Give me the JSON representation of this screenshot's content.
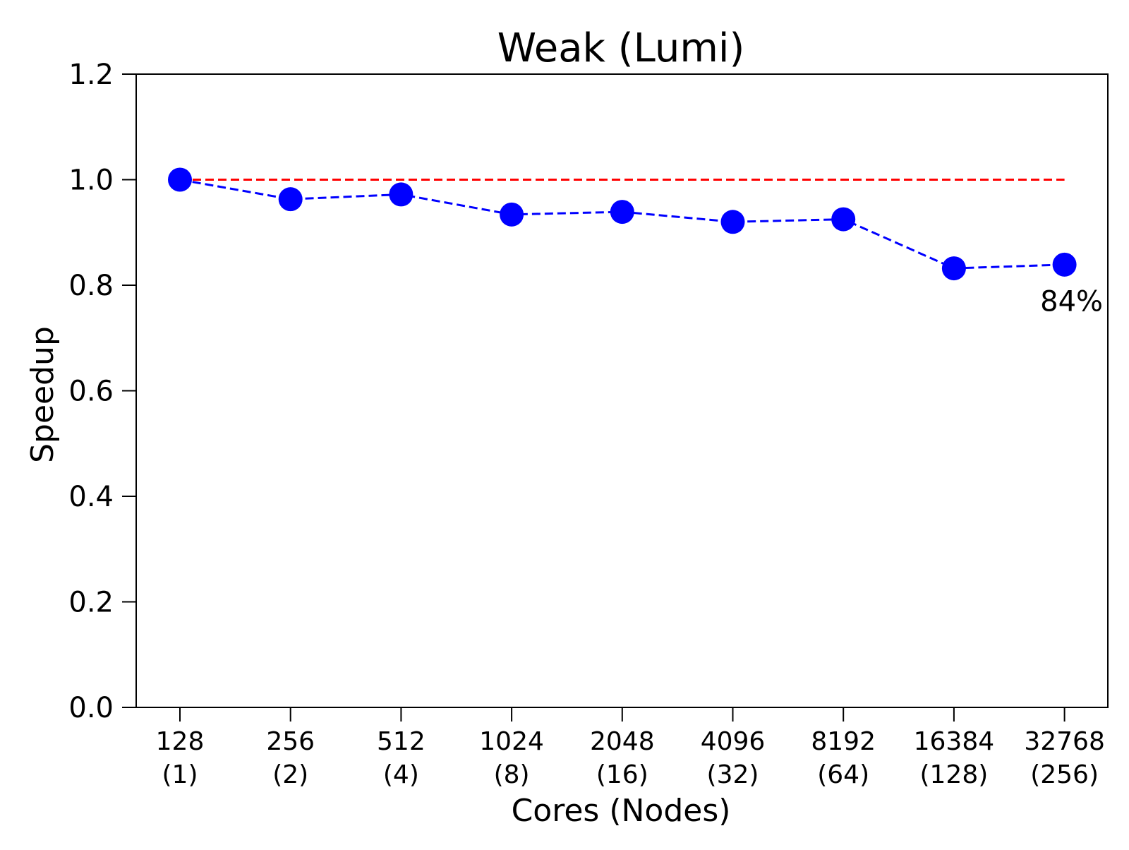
{
  "chart_data": {
    "type": "line",
    "title": "Weak (Lumi)",
    "xlabel": "Cores (Nodes)",
    "ylabel": "Speedup",
    "categories": [
      {
        "cores": "128",
        "nodes": "(1)"
      },
      {
        "cores": "256",
        "nodes": "(2)"
      },
      {
        "cores": "512",
        "nodes": "(4)"
      },
      {
        "cores": "1024",
        "nodes": "(8)"
      },
      {
        "cores": "2048",
        "nodes": "(16)"
      },
      {
        "cores": "4096",
        "nodes": "(32)"
      },
      {
        "cores": "8192",
        "nodes": "(64)"
      },
      {
        "cores": "16384",
        "nodes": "(128)"
      },
      {
        "cores": "32768",
        "nodes": "(256)"
      }
    ],
    "series": [
      {
        "values": [
          1.0,
          0.963,
          0.972,
          0.934,
          0.939,
          0.92,
          0.925,
          0.832,
          0.839
        ],
        "color": "#0000ff",
        "line_style": "dashed",
        "marker": "circle"
      },
      {
        "values": [
          1.0,
          1.0,
          1.0,
          1.0,
          1.0,
          1.0,
          1.0,
          1.0,
          1.0
        ],
        "color": "#ff0000",
        "line_style": "dashed",
        "marker": "none"
      }
    ],
    "ylim": [
      0,
      1.2
    ],
    "yticks": [
      "0.0",
      "0.2",
      "0.4",
      "0.6",
      "0.8",
      "1.0",
      "1.2"
    ],
    "grid": false,
    "annotations": [
      {
        "text": "84%",
        "category_index": 8,
        "y": 0.77
      }
    ]
  }
}
